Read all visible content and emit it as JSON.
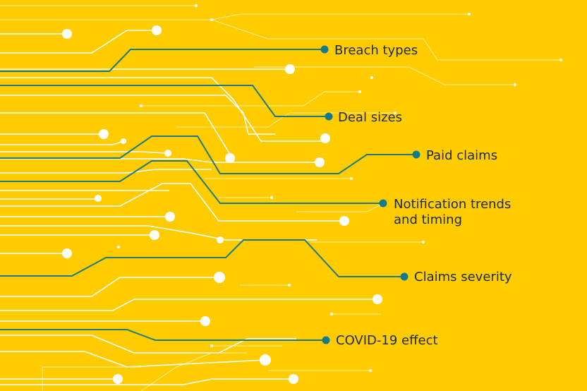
{
  "colors": {
    "background": "#FFCC00",
    "trace_blue": "#1F7A80",
    "trace_white": "#FFFFFF",
    "dot_blue": "#137A8B",
    "text": "#1F2A36"
  },
  "items": [
    {
      "label": "Breach types"
    },
    {
      "label": "Deal sizes"
    },
    {
      "label": "Paid claims"
    },
    {
      "label_line1": "Notification trends",
      "label_line2": "and timing"
    },
    {
      "label": "Claims severity"
    },
    {
      "label": "COVID-19 effect"
    }
  ]
}
